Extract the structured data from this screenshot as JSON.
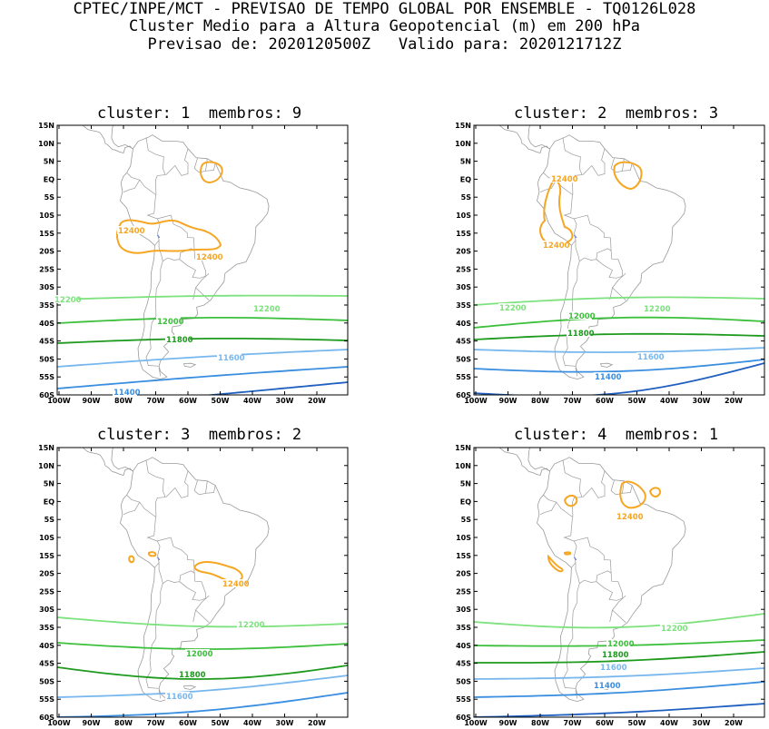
{
  "header": {
    "line1": "CPTEC/INPE/MCT - PREVISAO DE TEMPO GLOBAL POR ENSEMBLE - TQ0126L028",
    "line2": "Cluster Medio para a Altura Geopotencial (m) em 200 hPa",
    "line3": "Previsao de: 2020120500Z   Valido para: 2020121712Z"
  },
  "axes": {
    "lat_labels": [
      "15N",
      "10N",
      "5N",
      "EQ",
      "5S",
      "10S",
      "15S",
      "20S",
      "25S",
      "30S",
      "35S",
      "40S",
      "45S",
      "50S",
      "55S",
      "60S"
    ],
    "lon_labels": [
      "100W",
      "90W",
      "80W",
      "70W",
      "60W",
      "50W",
      "40W",
      "30W",
      "20W"
    ]
  },
  "colors": {
    "c12400": "#f5a623",
    "c12200": "#7de27d",
    "c12000": "#3cc03c",
    "c11800": "#1e9a1e",
    "c11600": "#77b7ee",
    "c11400": "#3a8ee0",
    "c11200": "#1f5fc0",
    "border": "#9a9a9a"
  },
  "panels": [
    {
      "title": "cluster: 1  membros: 9",
      "labels": [
        {
          "text": "12400",
          "level": "c12400"
        },
        {
          "text": "12400",
          "level": "c12400"
        },
        {
          "text": "12200",
          "level": "c12200"
        },
        {
          "text": "12200",
          "level": "c12200"
        },
        {
          "text": "12000",
          "level": "c12000"
        },
        {
          "text": "11800",
          "level": "c11800"
        },
        {
          "text": "11600",
          "level": "c11600"
        },
        {
          "text": "11400",
          "level": "c11400"
        }
      ]
    },
    {
      "title": "cluster: 2  membros: 3",
      "labels": [
        {
          "text": "12400",
          "level": "c12400"
        },
        {
          "text": "12400",
          "level": "c12400"
        },
        {
          "text": "12200",
          "level": "c12200"
        },
        {
          "text": "12200",
          "level": "c12200"
        },
        {
          "text": "12000",
          "level": "c12000"
        },
        {
          "text": "11800",
          "level": "c11800"
        },
        {
          "text": "11600",
          "level": "c11600"
        },
        {
          "text": "11400",
          "level": "c11400"
        }
      ]
    },
    {
      "title": "cluster: 3  membros: 2",
      "labels": [
        {
          "text": "12400",
          "level": "c12400"
        },
        {
          "text": "12200",
          "level": "c12200"
        },
        {
          "text": "12000",
          "level": "c12000"
        },
        {
          "text": "11800",
          "level": "c11800"
        },
        {
          "text": "11600",
          "level": "c11600"
        }
      ]
    },
    {
      "title": "cluster: 4  membros: 1",
      "labels": [
        {
          "text": "12400",
          "level": "c12400"
        },
        {
          "text": "12200",
          "level": "c12200"
        },
        {
          "text": "12000",
          "level": "c12000"
        },
        {
          "text": "11800",
          "level": "c11800"
        },
        {
          "text": "11600",
          "level": "c11600"
        },
        {
          "text": "11400",
          "level": "c11400"
        }
      ]
    }
  ]
}
